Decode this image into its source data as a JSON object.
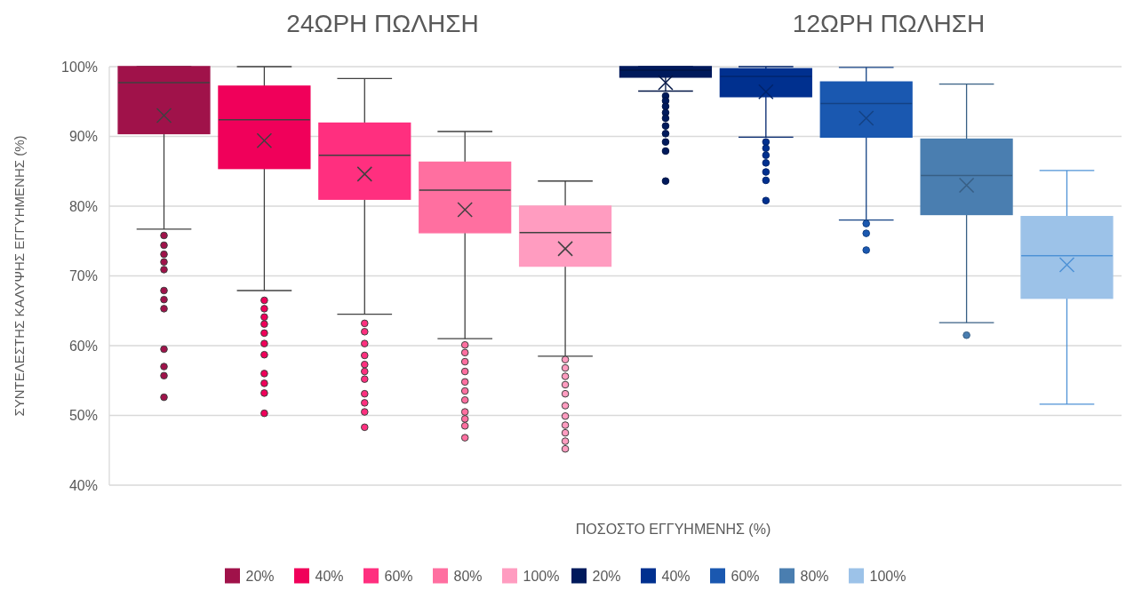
{
  "chart_data": {
    "type": "box",
    "xlabel": "ΠΟΣΟΣΤΟ ΕΓΓΥΗΜΕΝΗΣ (%)",
    "ylabel": "ΣΥΝΤΕΛΕΣΤΗΣ ΚΑΛΥΨΗΣ ΕΓΓΥΗΜΕΝΗΣ (%)",
    "annotations": [
      "24ΩΡΗ ΠΩΛΗΣΗ",
      "12ΩΡΗ ΠΩΛΗΣΗ"
    ],
    "categories": [
      null
    ],
    "ylim": [
      40,
      100
    ],
    "yticks": [
      {
        "value": 40,
        "label": "40%"
      },
      {
        "value": 50,
        "label": "50%"
      },
      {
        "value": 60,
        "label": "60%"
      },
      {
        "value": 70,
        "label": "70%"
      },
      {
        "value": 80,
        "label": "80%"
      },
      {
        "value": 90,
        "label": "90%"
      },
      {
        "value": 100,
        "label": "100%"
      }
    ],
    "grid": "y",
    "legend": "bottom",
    "marker": "circle",
    "series": [
      {
        "name": "20%",
        "color": "#a0124a",
        "boxes": [
          {
            "low": 76.7,
            "q1": 90.4,
            "median": 97.7,
            "q3": 100,
            "high": 100,
            "mean": 93,
            "outliers": [
              75.8,
              74.4,
              73.1,
              72.0,
              70.9,
              67.9,
              66.6,
              65.3,
              59.5,
              57.0,
              55.7,
              52.6
            ]
          }
        ]
      },
      {
        "name": "40%",
        "color": "#f0005a",
        "boxes": [
          {
            "low": 67.9,
            "q1": 85.4,
            "median": 92.4,
            "q3": 97.2,
            "high": 100,
            "mean": 89.4,
            "outliers": [
              66.5,
              65.3,
              64.1,
              63.1,
              61.8,
              60.3,
              58.7,
              56.0,
              54.6,
              53.2,
              50.3
            ]
          }
        ]
      },
      {
        "name": "60%",
        "color": "#ff2f7f",
        "boxes": [
          {
            "low": 64.5,
            "q1": 81.0,
            "median": 87.3,
            "q3": 91.9,
            "high": 98.3,
            "mean": 84.6,
            "outliers": [
              63.2,
              62.0,
              60.3,
              58.6,
              57.3,
              56.3,
              55.2,
              53.1,
              51.8,
              50.5,
              48.3
            ]
          }
        ]
      },
      {
        "name": "80%",
        "color": "#ff6fa0",
        "boxes": [
          {
            "low": 61.0,
            "q1": 76.2,
            "median": 82.3,
            "q3": 86.3,
            "high": 90.7,
            "mean": 79.5,
            "outliers": [
              60.1,
              59.0,
              57.7,
              56.3,
              54.8,
              53.5,
              52.2,
              50.5,
              49.5,
              48.5,
              46.8
            ]
          }
        ]
      },
      {
        "name": "100%",
        "color": "#ff9cc0",
        "boxes": [
          {
            "low": 58.5,
            "q1": 71.4,
            "median": 76.2,
            "q3": 80.0,
            "high": 83.6,
            "mean": 73.9,
            "outliers": [
              58.0,
              56.8,
              55.6,
              54.4,
              53.1,
              51.4,
              49.9,
              48.6,
              47.5,
              46.3,
              45.2
            ]
          }
        ]
      },
      {
        "name": "20%",
        "color": "#001a5c",
        "boxes": [
          {
            "low": 96.5,
            "q1": 98.5,
            "median": 99.5,
            "q3": 100,
            "high": 100,
            "mean": 97.7,
            "outliers": [
              95.8,
              95.1,
              94.3,
              93.4,
              92.6,
              91.5,
              90.4,
              89.2,
              87.9,
              83.6
            ]
          }
        ]
      },
      {
        "name": "40%",
        "color": "#00308f",
        "boxes": [
          {
            "low": 89.9,
            "q1": 95.7,
            "median": 98.6,
            "q3": 99.7,
            "high": 100,
            "mean": 96.4,
            "outliers": [
              89.2,
              88.3,
              87.3,
              86.2,
              84.9,
              83.7,
              80.8
            ]
          }
        ]
      },
      {
        "name": "60%",
        "color": "#1a58b0",
        "boxes": [
          {
            "low": 78.0,
            "q1": 89.9,
            "median": 94.7,
            "q3": 97.8,
            "high": 99.9,
            "mean": 92.6,
            "outliers": [
              77.5,
              76.1,
              73.7
            ]
          }
        ]
      },
      {
        "name": "80%",
        "color": "#4a7eb0",
        "boxes": [
          {
            "low": 63.3,
            "q1": 78.8,
            "median": 84.4,
            "q3": 89.6,
            "high": 97.5,
            "mean": 83.0,
            "outliers": [
              61.5
            ]
          }
        ]
      },
      {
        "name": "100%",
        "color": "#9cc2e8",
        "boxes": [
          {
            "low": 51.6,
            "q1": 66.8,
            "median": 72.9,
            "q3": 78.5,
            "high": 85.1,
            "mean": 71.6
          }
        ]
      }
    ]
  }
}
